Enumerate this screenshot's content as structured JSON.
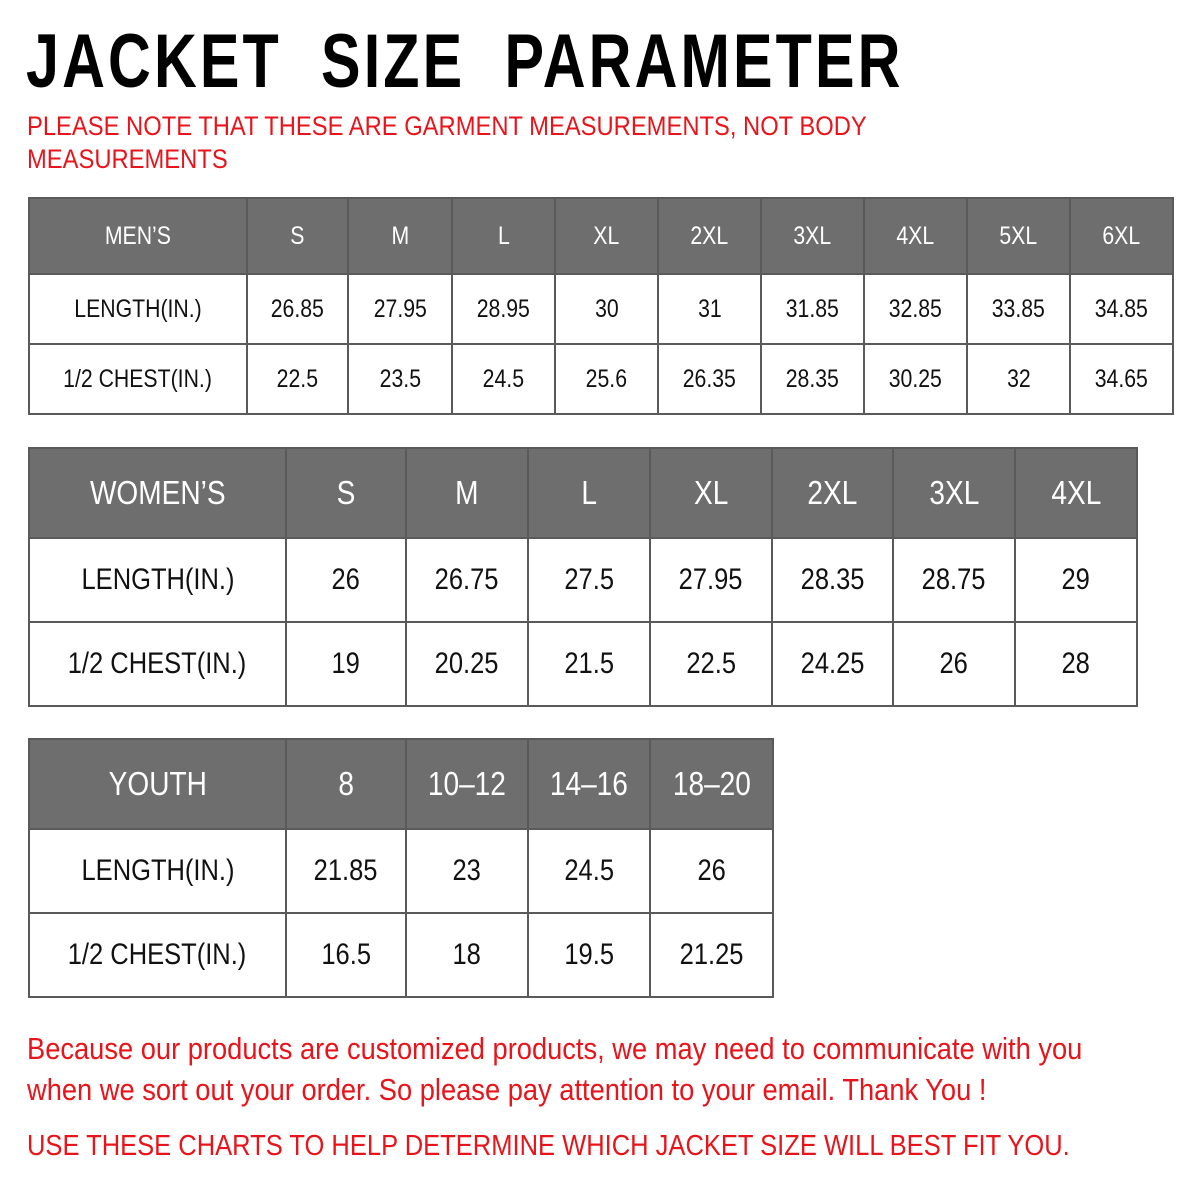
{
  "title": "JACKET  SIZE  PARAMETER",
  "note": "PLEASE NOTE THAT THESE ARE GARMENT MEASUREMENTS, NOT BODY MEASUREMENTS",
  "colors": {
    "header_bg": "#6e6e6e",
    "header_text": "#ffffff",
    "accent_red": "#e8141b"
  },
  "tables": {
    "men": {
      "header": [
        "MEN’S",
        "S",
        "M",
        "L",
        "XL",
        "2XL",
        "3XL",
        "4XL",
        "5XL",
        "6XL"
      ],
      "rows": [
        [
          "LENGTH(IN.)",
          "26.85",
          "27.95",
          "28.95",
          "30",
          "31",
          "31.85",
          "32.85",
          "33.85",
          "34.85"
        ],
        [
          "1/2 CHEST(IN.)",
          "22.5",
          "23.5",
          "24.5",
          "25.6",
          "26.35",
          "28.35",
          "30.25",
          "32",
          "34.65"
        ]
      ]
    },
    "women": {
      "header": [
        "WOMEN’S",
        "S",
        "M",
        "L",
        "XL",
        "2XL",
        "3XL",
        "4XL"
      ],
      "rows": [
        [
          "LENGTH(IN.)",
          "26",
          "26.75",
          "27.5",
          "27.95",
          "28.35",
          "28.75",
          "29"
        ],
        [
          "1/2 CHEST(IN.)",
          "19",
          "20.25",
          "21.5",
          "22.5",
          "24.25",
          "26",
          "28"
        ]
      ]
    },
    "youth": {
      "header": [
        "YOUTH",
        "8",
        "10–12",
        "14–16",
        "18–20"
      ],
      "rows": [
        [
          "LENGTH(IN.)",
          "21.85",
          "23",
          "24.5",
          "26"
        ],
        [
          "1/2 CHEST(IN.)",
          "16.5",
          "18",
          "19.5",
          "21.25"
        ]
      ]
    }
  },
  "message": "Because our products are customized products, we may need to communicate with you when we sort out your order. So please pay attention to your email. Thank You !",
  "footer": "USE THESE CHARTS TO HELP DETERMINE WHICH JACKET SIZE WILL BEST FIT YOU."
}
